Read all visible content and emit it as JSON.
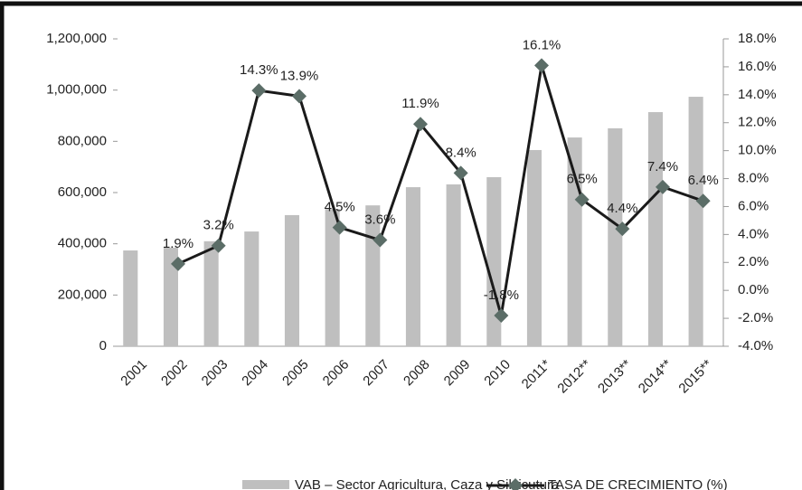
{
  "chart_data": {
    "type": "bar",
    "categories": [
      "2001",
      "2002",
      "2003",
      "2004",
      "2005",
      "2006",
      "2007",
      "2008",
      "2009",
      "2010",
      "2011*",
      "2012**",
      "2013**",
      "2014**",
      "2015**"
    ],
    "series": [
      {
        "name": "VAB – Sector Agricultura, Caza y Silvicutura",
        "type": "bar",
        "color": "#bfbfbf",
        "values": [
          374000,
          385000,
          410000,
          448000,
          512000,
          536000,
          550000,
          621000,
          632000,
          660000,
          766000,
          815000,
          851000,
          914000,
          974000
        ]
      },
      {
        "name": "TASA DE CRECIMIENTO (%)",
        "type": "line",
        "axis": "y2",
        "color": "#1a1a1a",
        "marker_color": "#5b6d67",
        "values": [
          null,
          1.9,
          3.2,
          14.3,
          13.9,
          4.5,
          3.6,
          11.9,
          8.4,
          -1.8,
          16.1,
          6.5,
          4.4,
          7.4,
          6.4
        ],
        "value_labels": [
          null,
          "1.9%",
          "3.2%",
          "14.3%",
          "13.9%",
          "4.5%",
          "3.6%",
          "11.9%",
          "8.4%",
          "-1.8%",
          "16.1%",
          "6.5%",
          "4.4%",
          "7.4%",
          "6.4%"
        ]
      }
    ],
    "ylim": [
      0,
      1200000
    ],
    "yticks": [
      0,
      {
        "value": 200000,
        "label": "200,000"
      },
      {
        "value": 400000,
        "label": "400,000"
      },
      {
        "value": 600000,
        "label": "600,000"
      },
      {
        "value": 800000,
        "label": "800,000"
      },
      {
        "value": 1000000,
        "label": "1,000,000"
      },
      {
        "value": 1200000,
        "label": "1,200,000"
      }
    ],
    "y2lim": [
      -4,
      18
    ],
    "y2ticks": [
      {
        "value": -4,
        "label": "-4.0%"
      },
      {
        "value": -2,
        "label": "-2.0%"
      },
      {
        "value": 0,
        "label": "0.0%"
      },
      {
        "value": 2,
        "label": "2.0%"
      },
      {
        "value": 4,
        "label": "4.0%"
      },
      {
        "value": 6,
        "label": "6.0%"
      },
      {
        "value": 8,
        "label": "8.0%"
      },
      {
        "value": 10,
        "label": "10.0%"
      },
      {
        "value": 12,
        "label": "12.0%"
      },
      {
        "value": 14,
        "label": "14.0%"
      },
      {
        "value": 16,
        "label": "16.0%"
      },
      {
        "value": 18,
        "label": "18.0%"
      }
    ],
    "grid": false,
    "legend": "bottom"
  }
}
